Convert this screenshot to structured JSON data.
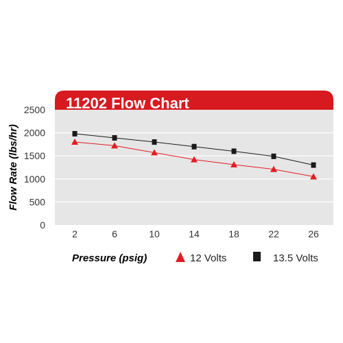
{
  "chart_data": {
    "type": "line",
    "title": "11202 Flow Chart",
    "xlabel": "Pressure (psig)",
    "ylabel": "Flow Rate (lbs/hr)",
    "x": [
      2,
      6,
      10,
      14,
      18,
      22,
      26
    ],
    "xlim": [
      0,
      28
    ],
    "ylim": [
      0,
      2500
    ],
    "yticks": [
      0,
      500,
      1000,
      1500,
      2000,
      2500
    ],
    "grid": "horizontal",
    "legend_position": "bottom",
    "series": [
      {
        "name": "12 Volts",
        "marker": "triangle",
        "color": "#e31b23",
        "values": [
          1800,
          1720,
          1570,
          1420,
          1310,
          1210,
          1050
        ]
      },
      {
        "name": "13.5 Volts",
        "marker": "square",
        "color": "#1a1a1a",
        "values": [
          1980,
          1890,
          1800,
          1700,
          1600,
          1490,
          1300
        ]
      }
    ],
    "colors": {
      "header": "#d71920",
      "plot_background": "#e6e6e6",
      "gridline": "#ffffff"
    }
  }
}
